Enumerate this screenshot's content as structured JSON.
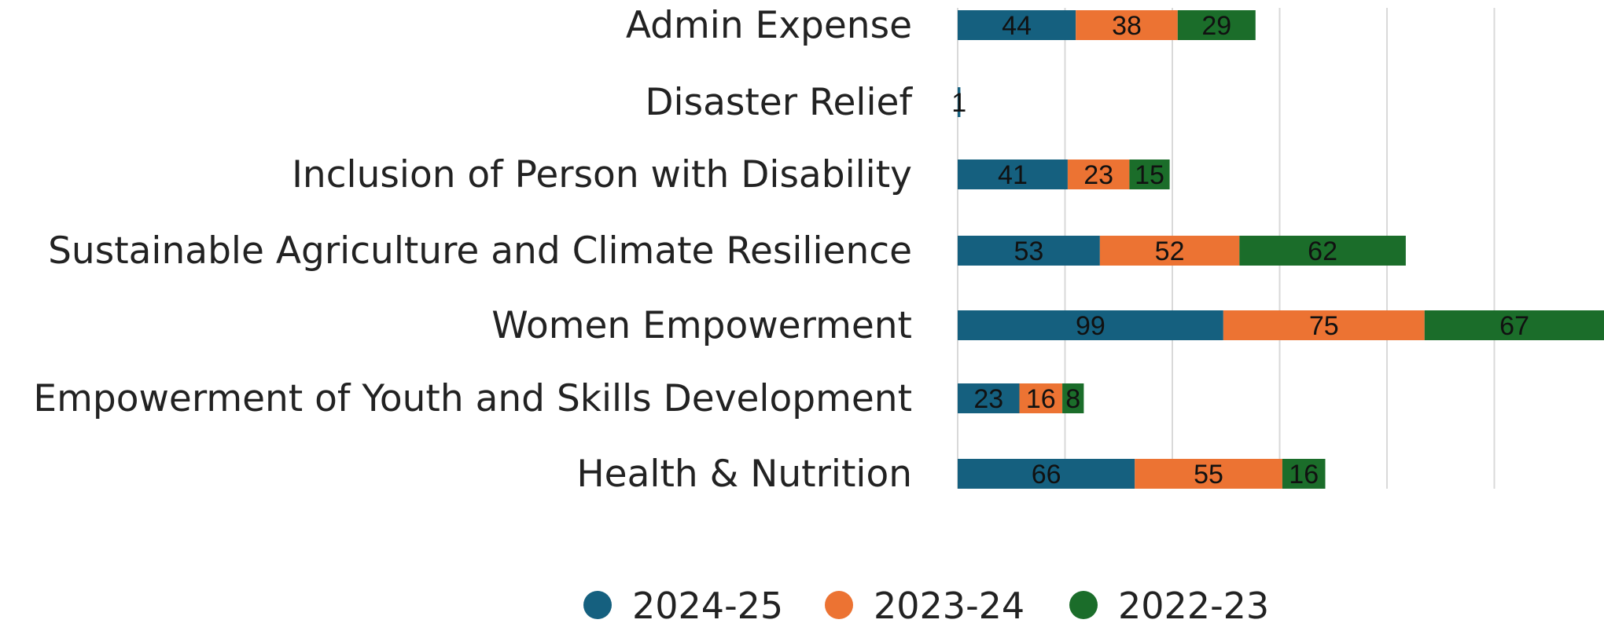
{
  "chart_data": {
    "type": "bar",
    "orientation": "horizontal",
    "stacked": true,
    "title": "",
    "xlabel": "",
    "ylabel": "",
    "xlim": [
      0,
      240
    ],
    "grid": true,
    "legend_position": "bottom",
    "categories": [
      "Admin Expense",
      "Disaster Relief",
      "Inclusion of Person with Disability",
      "Sustainable Agriculture and Climate Resilience",
      "Women Empowerment",
      "Empowerment of Youth and Skills Development",
      "Health & Nutrition"
    ],
    "series": [
      {
        "name": "2024-25",
        "color": "#15607f",
        "values": [
          44,
          1,
          41,
          53,
          99,
          23,
          66
        ]
      },
      {
        "name": "2023-24",
        "color": "#ec7333",
        "values": [
          38,
          null,
          23,
          52,
          75,
          16,
          55
        ]
      },
      {
        "name": "2022-23",
        "color": "#1b6d2a",
        "values": [
          29,
          null,
          15,
          62,
          67,
          8,
          16
        ]
      }
    ]
  }
}
